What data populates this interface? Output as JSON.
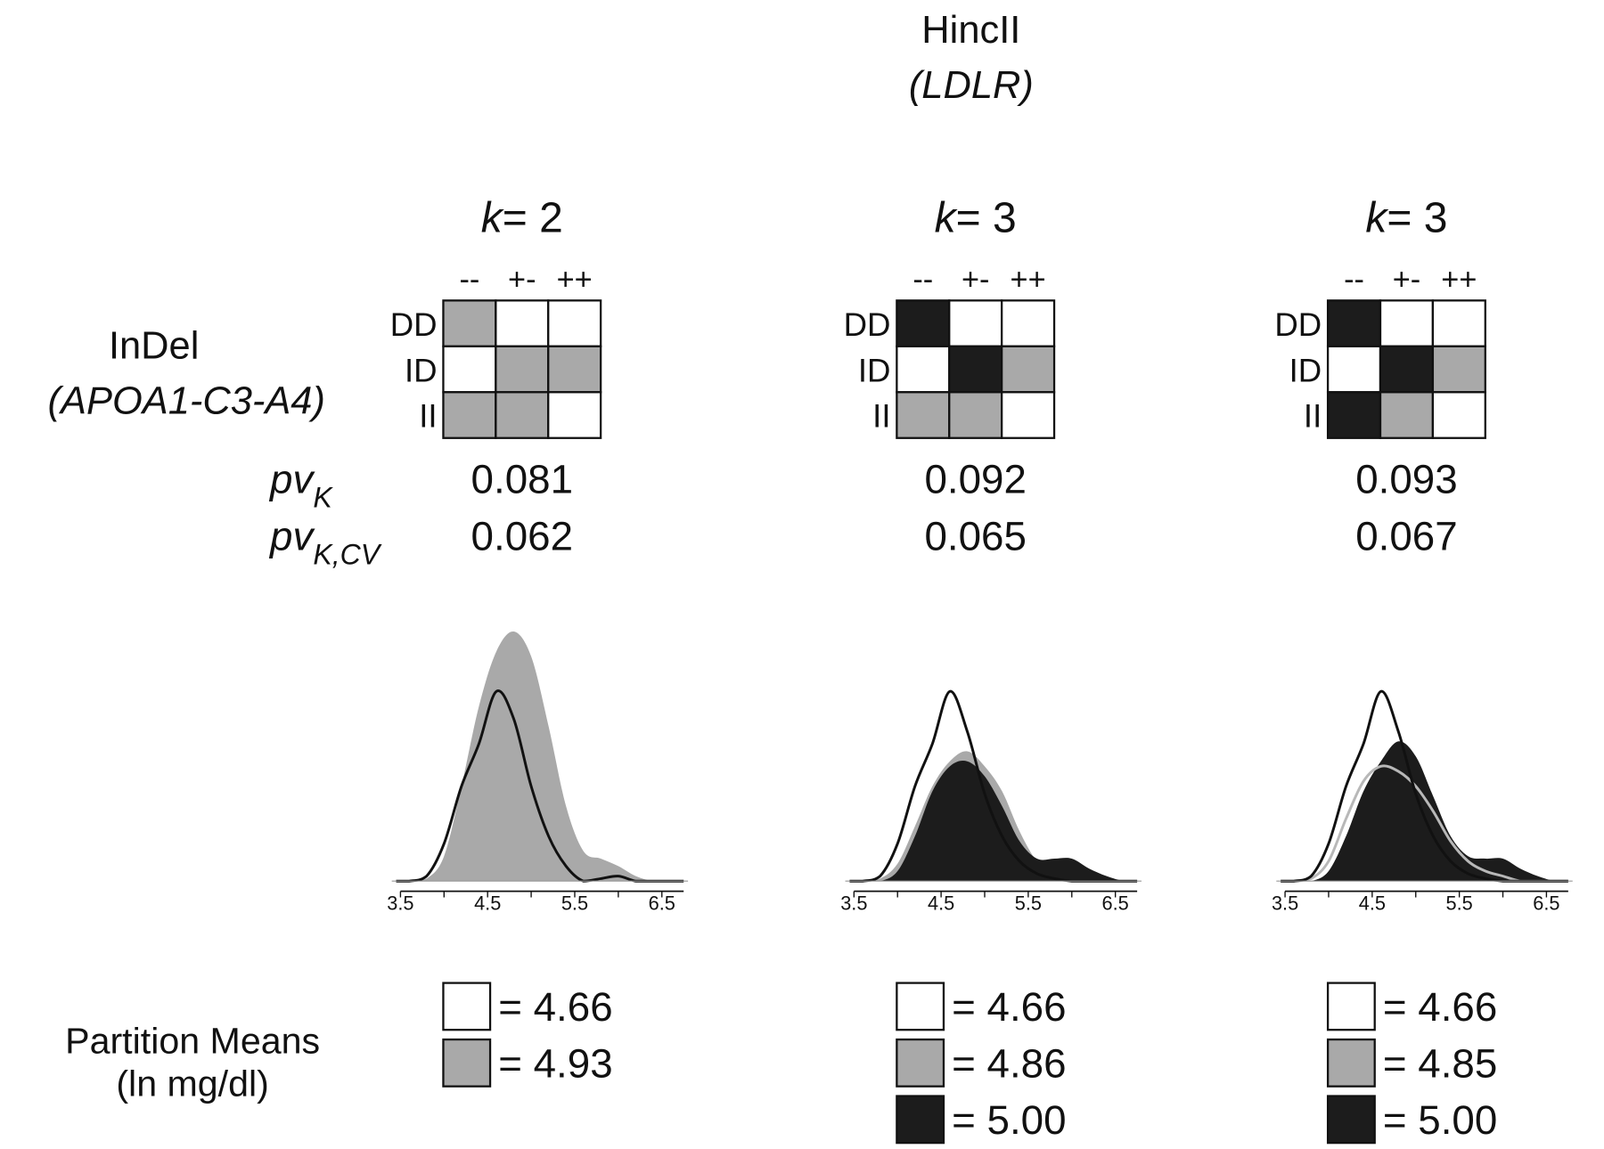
{
  "header": {
    "title": "HincII",
    "subtitle": "(LDLR)"
  },
  "row_factor": {
    "title": "InDel",
    "subtitle": "(APOA1-C3-A4)"
  },
  "pv_labels": {
    "pv_k": "pv",
    "pv_k_sub": "K",
    "pv_kcv": "pv",
    "pv_kcv_sub": "K,CV"
  },
  "column_labels": [
    "--",
    "+-",
    "++"
  ],
  "row_labels": [
    "DD",
    "ID",
    "II"
  ],
  "legend_title": {
    "line1": "Partition Means",
    "line2": "(ln mg/dl)"
  },
  "colors": {
    "white": "#ffffff",
    "gray": "#a9a9a9",
    "black": "#1c1c1c"
  },
  "panels": [
    {
      "k_label": "k",
      "k_value": "= 2",
      "grid": [
        [
          "gray",
          "white",
          "white"
        ],
        [
          "white",
          "gray",
          "gray"
        ],
        [
          "gray",
          "gray",
          "white"
        ]
      ],
      "pv_k": "0.081",
      "pv_kcv": "0.062",
      "legend": [
        {
          "color": "white",
          "label": "= 4.66"
        },
        {
          "color": "gray",
          "label": "= 4.93"
        }
      ]
    },
    {
      "k_label": "k",
      "k_value": "= 3",
      "grid": [
        [
          "black",
          "white",
          "white"
        ],
        [
          "white",
          "black",
          "gray"
        ],
        [
          "gray",
          "gray",
          "white"
        ]
      ],
      "pv_k": "0.092",
      "pv_kcv": "0.065",
      "legend": [
        {
          "color": "white",
          "label": "= 4.66"
        },
        {
          "color": "gray",
          "label": "= 4.86"
        },
        {
          "color": "black",
          "label": "= 5.00"
        }
      ]
    },
    {
      "k_label": "k",
      "k_value": "= 3",
      "grid": [
        [
          "black",
          "white",
          "white"
        ],
        [
          "white",
          "black",
          "gray"
        ],
        [
          "black",
          "gray",
          "white"
        ]
      ],
      "pv_k": "0.093",
      "pv_kcv": "0.067",
      "legend": [
        {
          "color": "white",
          "label": "= 4.66"
        },
        {
          "color": "gray",
          "label": "= 4.85"
        },
        {
          "color": "black",
          "label": "= 5.00"
        }
      ]
    }
  ],
  "chart_data": {
    "type": "area",
    "xlim": [
      3.5,
      6.7
    ],
    "x_ticks": [
      "3.5",
      "4.5",
      "5.5",
      "6.5"
    ],
    "x": [
      3.6,
      3.8,
      4.0,
      4.2,
      4.4,
      4.6,
      4.8,
      5.0,
      5.2,
      5.4,
      5.6,
      5.8,
      6.0,
      6.2,
      6.4,
      6.6
    ],
    "plots": [
      {
        "series": [
          {
            "partition": "gray",
            "style": "fill",
            "values": [
              0,
              1,
              10,
              38,
              70,
              92,
              100,
              90,
              62,
              30,
              12,
              9,
              6,
              2,
              0,
              0
            ]
          },
          {
            "partition": "white",
            "style": "line",
            "values": [
              0,
              2,
              15,
              38,
              55,
              76,
              65,
              38,
              18,
              6,
              0,
              1,
              2,
              0,
              0,
              0
            ]
          }
        ]
      },
      {
        "series": [
          {
            "partition": "gray",
            "style": "fill",
            "values": [
              0,
              1,
              7,
              22,
              38,
              48,
              52,
              46,
              36,
              20,
              8,
              4,
              2,
              1,
              0,
              0
            ]
          },
          {
            "partition": "black",
            "style": "fill",
            "values": [
              0,
              0,
              4,
              18,
              36,
              46,
              48,
              42,
              30,
              16,
              9,
              9,
              9,
              5,
              2,
              0
            ]
          },
          {
            "partition": "white",
            "style": "line",
            "values": [
              0,
              2,
              15,
              38,
              55,
              76,
              60,
              35,
              18,
              8,
              3,
              1,
              0,
              0,
              0,
              0
            ]
          }
        ]
      },
      {
        "series": [
          {
            "partition": "black",
            "style": "fill",
            "values": [
              0,
              0,
              4,
              18,
              36,
              48,
              56,
              50,
              34,
              18,
              10,
              9,
              9,
              5,
              2,
              0
            ]
          },
          {
            "partition": "gray",
            "style": "line",
            "values": [
              0,
              1,
              8,
              25,
              40,
              46,
              44,
              38,
              28,
              16,
              8,
              4,
              2,
              0,
              0,
              0
            ]
          },
          {
            "partition": "white",
            "style": "line",
            "values": [
              0,
              2,
              15,
              38,
              55,
              76,
              60,
              35,
              18,
              8,
              3,
              1,
              0,
              0,
              0,
              0
            ]
          }
        ]
      }
    ]
  }
}
